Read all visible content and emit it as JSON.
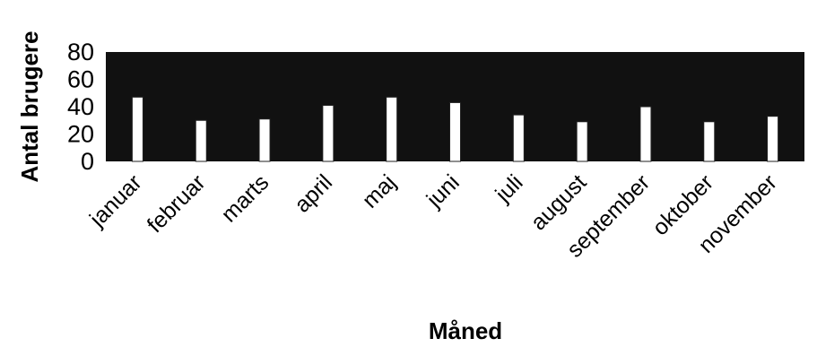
{
  "chart_data": {
    "type": "bar",
    "title": "",
    "xlabel": "Måned",
    "ylabel": "Antal brugere",
    "ylim": [
      0,
      80
    ],
    "yticks": [
      0,
      20,
      40,
      60,
      80
    ],
    "grid": false,
    "legend": "none",
    "categories": [
      "januar",
      "februar",
      "marts",
      "april",
      "maj",
      "juni",
      "juli",
      "august",
      "september",
      "oktober",
      "november"
    ],
    "values": [
      47,
      30,
      31,
      41,
      47,
      43,
      34,
      29,
      40,
      29,
      33
    ],
    "colors": {
      "plot_background": "#111111",
      "bar_fill": "#ffffff",
      "bar_stroke": "#222222",
      "text": "#000000"
    }
  }
}
